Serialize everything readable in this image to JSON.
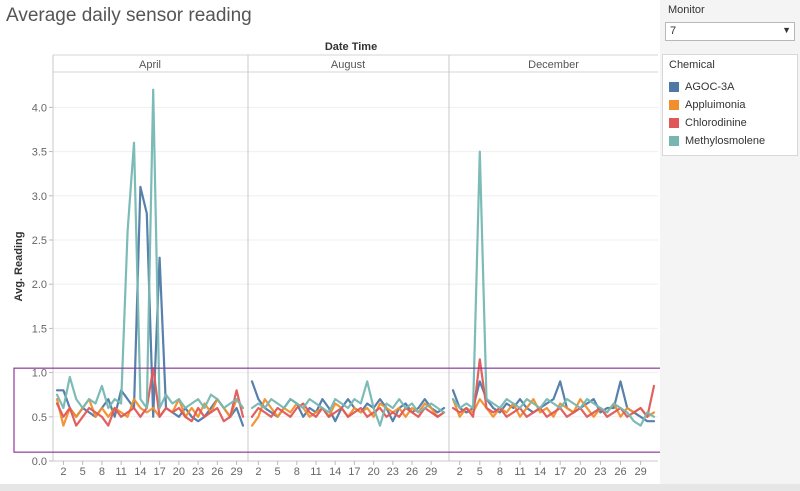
{
  "title": "Average daily sensor reading",
  "filter": {
    "label": "Monitor",
    "value": "7"
  },
  "legend": {
    "title": "Chemical",
    "items": [
      {
        "name": "AGOC-3A",
        "color": "#4e79a7"
      },
      {
        "name": "Appluimonia",
        "color": "#f28e2b"
      },
      {
        "name": "Chlorodinine",
        "color": "#e15759"
      },
      {
        "name": "Methylosmolene",
        "color": "#76b7b2"
      }
    ]
  },
  "chart_data": {
    "type": "line",
    "title": "Average daily sensor reading",
    "header": "Date Time",
    "ylabel": "Avg. Reading",
    "ylim": [
      0,
      4.4
    ],
    "yticks": [
      0.0,
      0.5,
      1.0,
      1.5,
      2.0,
      2.5,
      3.0,
      3.5,
      4.0
    ],
    "ytick_labels": [
      "0.0",
      "0.5",
      "1.0",
      "1.5",
      "2.0",
      "2.5",
      "3.0",
      "3.5",
      "4.0"
    ],
    "x_tick_labels": [
      "2",
      "5",
      "8",
      "11",
      "14",
      "17",
      "20",
      "23",
      "26",
      "29"
    ],
    "x_tick_days": [
      2,
      5,
      8,
      11,
      14,
      17,
      20,
      23,
      26,
      29
    ],
    "highlight_box": {
      "ymin": 0.1,
      "ymax": 1.05
    },
    "panels": [
      {
        "month": "April",
        "days": 30,
        "series": [
          {
            "name": "AGOC-3A",
            "values": [
              0.8,
              0.8,
              0.6,
              0.5,
              0.6,
              0.55,
              0.5,
              0.6,
              0.7,
              0.5,
              0.8,
              0.7,
              0.6,
              3.1,
              2.8,
              0.5,
              2.3,
              0.6,
              0.55,
              0.5,
              0.6,
              0.5,
              0.45,
              0.5,
              0.6,
              0.7,
              0.6,
              0.5,
              0.6,
              0.4
            ]
          },
          {
            "name": "Appluimonia",
            "values": [
              0.7,
              0.4,
              0.6,
              0.5,
              0.6,
              0.7,
              0.5,
              0.6,
              0.5,
              0.6,
              0.55,
              0.5,
              0.7,
              0.6,
              0.55,
              0.6,
              0.5,
              0.6,
              0.55,
              0.7,
              0.5,
              0.6,
              0.5,
              0.65,
              0.55,
              0.7,
              0.6,
              0.5,
              0.7,
              0.6
            ]
          },
          {
            "name": "Chlorodinine",
            "values": [
              0.65,
              0.5,
              0.6,
              0.4,
              0.5,
              0.6,
              0.55,
              0.5,
              0.4,
              0.6,
              0.5,
              0.55,
              0.6,
              0.5,
              0.6,
              1.05,
              0.5,
              0.6,
              0.55,
              0.6,
              0.5,
              0.45,
              0.6,
              0.5,
              0.55,
              0.6,
              0.45,
              0.5,
              0.8,
              0.5
            ]
          },
          {
            "name": "Methylosmolene",
            "values": [
              0.75,
              0.6,
              0.95,
              0.7,
              0.6,
              0.7,
              0.65,
              0.85,
              0.6,
              0.7,
              0.65,
              2.6,
              3.6,
              0.7,
              0.6,
              4.2,
              0.6,
              0.75,
              0.65,
              0.7,
              0.6,
              0.65,
              0.7,
              0.6,
              0.75,
              0.7,
              0.6,
              0.65,
              0.7,
              0.6
            ]
          }
        ]
      },
      {
        "month": "August",
        "days": 31,
        "series": [
          {
            "name": "AGOC-3A",
            "values": [
              0.9,
              0.7,
              0.6,
              0.55,
              0.5,
              0.6,
              0.7,
              0.65,
              0.5,
              0.6,
              0.55,
              0.7,
              0.6,
              0.45,
              0.6,
              0.7,
              0.6,
              0.55,
              0.65,
              0.6,
              0.7,
              0.6,
              0.45,
              0.6,
              0.65,
              0.55,
              0.6,
              0.7,
              0.6,
              0.55,
              0.6
            ]
          },
          {
            "name": "Appluimonia",
            "values": [
              0.4,
              0.5,
              0.7,
              0.6,
              0.5,
              0.6,
              0.55,
              0.65,
              0.6,
              0.5,
              0.55,
              0.6,
              0.5,
              0.65,
              0.6,
              0.5,
              0.6,
              0.55,
              0.6,
              0.5,
              0.65,
              0.6,
              0.55,
              0.6,
              0.5,
              0.6,
              0.55,
              0.65,
              0.6,
              0.5,
              0.55
            ]
          },
          {
            "name": "Chlorodinine",
            "values": [
              0.5,
              0.6,
              0.55,
              0.5,
              0.6,
              0.55,
              0.5,
              0.6,
              0.65,
              0.55,
              0.5,
              0.6,
              0.5,
              0.55,
              0.6,
              0.5,
              0.55,
              0.6,
              0.5,
              0.55,
              0.6,
              0.5,
              0.55,
              0.5,
              0.6,
              0.55,
              0.5,
              0.6,
              0.55,
              0.5,
              0.55
            ]
          },
          {
            "name": "Methylosmolene",
            "values": [
              0.6,
              0.65,
              0.6,
              0.7,
              0.65,
              0.6,
              0.7,
              0.65,
              0.6,
              0.7,
              0.65,
              0.6,
              0.55,
              0.7,
              0.65,
              0.6,
              0.7,
              0.65,
              0.9,
              0.6,
              0.4,
              0.65,
              0.6,
              0.7,
              0.6,
              0.65,
              0.55,
              0.6,
              0.65,
              0.6,
              0.55
            ]
          }
        ]
      },
      {
        "month": "December",
        "days": 31,
        "series": [
          {
            "name": "AGOC-3A",
            "values": [
              0.8,
              0.6,
              0.55,
              0.6,
              0.9,
              0.7,
              0.6,
              0.55,
              0.65,
              0.6,
              0.7,
              0.6,
              0.55,
              0.6,
              0.65,
              0.7,
              0.9,
              0.6,
              0.55,
              0.6,
              0.65,
              0.7,
              0.55,
              0.6,
              0.6,
              0.9,
              0.6,
              0.55,
              0.5,
              0.45,
              0.45
            ]
          },
          {
            "name": "Appluimonia",
            "values": [
              0.7,
              0.5,
              0.6,
              0.55,
              0.7,
              0.6,
              0.5,
              0.6,
              0.55,
              0.65,
              0.5,
              0.6,
              0.7,
              0.55,
              0.6,
              0.5,
              0.65,
              0.6,
              0.55,
              0.7,
              0.6,
              0.5,
              0.6,
              0.55,
              0.65,
              0.5,
              0.6,
              0.55,
              0.6,
              0.5,
              0.55
            ]
          },
          {
            "name": "Chlorodinine",
            "values": [
              0.6,
              0.55,
              0.6,
              0.5,
              1.15,
              0.6,
              0.55,
              0.6,
              0.5,
              0.55,
              0.6,
              0.5,
              0.55,
              0.6,
              0.5,
              0.55,
              0.6,
              0.5,
              0.55,
              0.6,
              0.5,
              0.55,
              0.6,
              0.5,
              0.55,
              0.6,
              0.5,
              0.55,
              0.6,
              0.5,
              0.85
            ]
          },
          {
            "name": "Methylosmolene",
            "values": [
              0.7,
              0.6,
              0.65,
              0.6,
              3.5,
              0.7,
              0.65,
              0.6,
              0.7,
              0.65,
              0.6,
              0.7,
              0.65,
              0.6,
              0.7,
              0.65,
              0.6,
              0.7,
              0.65,
              0.6,
              0.7,
              0.65,
              0.6,
              0.55,
              0.65,
              0.6,
              0.55,
              0.45,
              0.4,
              0.55,
              0.5
            ]
          }
        ]
      }
    ]
  }
}
